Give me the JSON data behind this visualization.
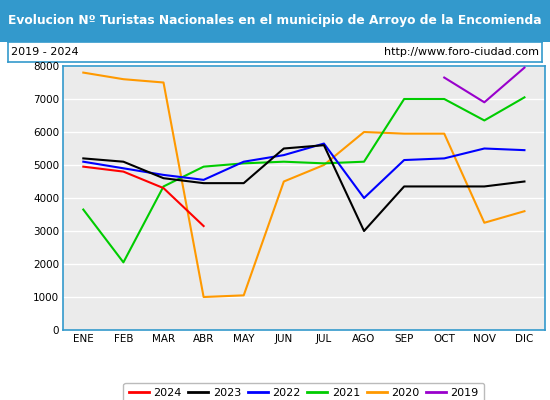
{
  "title": "Evolucion Nº Turistas Nacionales en el municipio de Arroyo de la Encomienda",
  "subtitle_left": "2019 - 2024",
  "subtitle_right": "http://www.foro-ciudad.com",
  "x_labels": [
    "ENE",
    "FEB",
    "MAR",
    "ABR",
    "MAY",
    "JUN",
    "JUL",
    "AGO",
    "SEP",
    "OCT",
    "NOV",
    "DIC"
  ],
  "ylim": [
    0,
    8000
  ],
  "yticks": [
    0,
    1000,
    2000,
    3000,
    4000,
    5000,
    6000,
    7000,
    8000
  ],
  "series": {
    "2024": {
      "color": "#ff0000",
      "data": [
        4950,
        4800,
        4300,
        3150,
        null,
        null,
        null,
        null,
        null,
        null,
        null,
        null
      ]
    },
    "2023": {
      "color": "#000000",
      "data": [
        5200,
        5100,
        4600,
        4450,
        4450,
        5500,
        5600,
        3000,
        4350,
        4350,
        4350,
        4500
      ]
    },
    "2022": {
      "color": "#0000ff",
      "data": [
        5100,
        4900,
        4700,
        4550,
        5100,
        5300,
        5650,
        4000,
        5150,
        5200,
        5500,
        5450
      ]
    },
    "2021": {
      "color": "#00cc00",
      "data": [
        3650,
        2050,
        4350,
        4950,
        5050,
        5100,
        5050,
        5100,
        7000,
        7000,
        6350,
        7050
      ]
    },
    "2020": {
      "color": "#ff9900",
      "data": [
        7800,
        7600,
        7500,
        1000,
        1050,
        4500,
        5000,
        6000,
        5950,
        5950,
        3250,
        3600
      ]
    },
    "2019": {
      "color": "#9900cc",
      "data": [
        null,
        null,
        null,
        null,
        null,
        null,
        null,
        null,
        null,
        7650,
        6900,
        7950
      ]
    }
  },
  "legend_order": [
    "2024",
    "2023",
    "2022",
    "2021",
    "2020",
    "2019"
  ],
  "title_bg_color": "#3399cc",
  "title_font_color": "#ffffff",
  "plot_bg_color": "#ebebeb",
  "outer_bg_color": "#ffffff",
  "border_color": "#3399cc",
  "grid_color": "#ffffff"
}
